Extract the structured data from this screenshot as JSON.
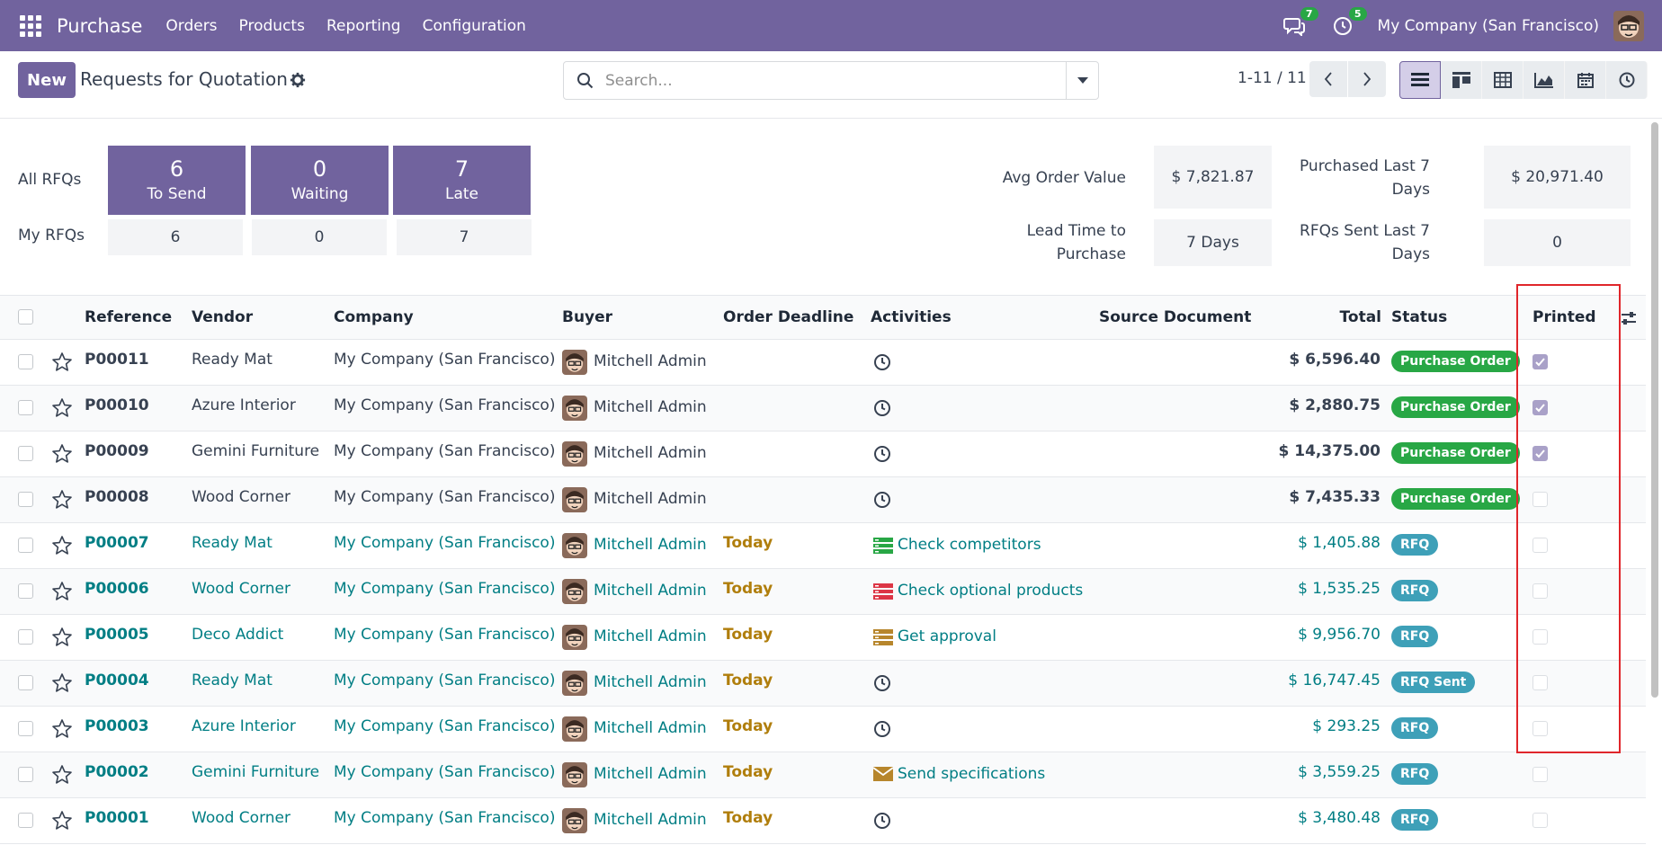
{
  "navbar": {
    "brand": "Purchase",
    "menus": [
      "Orders",
      "Products",
      "Reporting",
      "Configuration"
    ],
    "messages_count": "7",
    "activities_count": "5",
    "company": "My Company (San Francisco)"
  },
  "control_panel": {
    "new_label": "New",
    "title": "Requests for Quotation",
    "search_placeholder": "Search...",
    "pager": "1-11 / 11",
    "views": [
      "list-view-icon",
      "kanban-view-icon",
      "pivot-view-icon",
      "graph-view-icon",
      "calendar-view-icon",
      "activity-view-icon"
    ]
  },
  "dashboard": {
    "all_rfqs_label": "All RFQs",
    "my_rfqs_label": "My RFQs",
    "tiles": [
      {
        "value": "6",
        "label": "To Send",
        "mine": "6"
      },
      {
        "value": "0",
        "label": "Waiting",
        "mine": "0"
      },
      {
        "value": "7",
        "label": "Late",
        "mine": "7"
      }
    ],
    "kpis": {
      "avg_order_label": "Avg Order Value",
      "avg_order_value": "$ 7,821.87",
      "purchased_label_1": "Purchased Last 7",
      "purchased_label_2": "Days",
      "purchased_value": "$ 20,971.40",
      "lead_label_1": "Lead Time to",
      "lead_label_2": "Purchase",
      "lead_value": "7 Days",
      "sent_label_1": "RFQs Sent Last 7",
      "sent_label_2": "Days",
      "sent_value": "0"
    }
  },
  "table": {
    "headers": [
      "Reference",
      "Vendor",
      "Company",
      "Buyer",
      "Order Deadline",
      "Activities",
      "Source Document",
      "Total",
      "Status",
      "Printed"
    ],
    "rows": [
      {
        "ref": "P00011",
        "vendor": "Ready Mat",
        "company": "My Company (San Francisco)",
        "buyer": "Mitchell Admin",
        "deadline": "",
        "activity": "",
        "activity_icon": "clock-icon",
        "total": "$ 6,596.40",
        "status": "Purchase Order",
        "printed": true
      },
      {
        "ref": "P00010",
        "vendor": "Azure Interior",
        "company": "My Company (San Francisco)",
        "buyer": "Mitchell Admin",
        "deadline": "",
        "activity": "",
        "activity_icon": "clock-icon",
        "total": "$ 2,880.75",
        "status": "Purchase Order",
        "printed": true
      },
      {
        "ref": "P00009",
        "vendor": "Gemini Furniture",
        "company": "My Company (San Francisco)",
        "buyer": "Mitchell Admin",
        "deadline": "",
        "activity": "",
        "activity_icon": "clock-icon",
        "total": "$ 14,375.00",
        "status": "Purchase Order",
        "printed": true
      },
      {
        "ref": "P00008",
        "vendor": "Wood Corner",
        "company": "My Company (San Francisco)",
        "buyer": "Mitchell Admin",
        "deadline": "",
        "activity": "",
        "activity_icon": "clock-icon",
        "total": "$ 7,435.33",
        "status": "Purchase Order",
        "printed": false
      },
      {
        "ref": "P00007",
        "vendor": "Ready Mat",
        "company": "My Company (San Francisco)",
        "buyer": "Mitchell Admin",
        "deadline": "Today",
        "activity": "Check competitors",
        "activity_icon": "tasks-green-icon",
        "total": "$ 1,405.88",
        "status": "RFQ",
        "printed": false
      },
      {
        "ref": "P00006",
        "vendor": "Wood Corner",
        "company": "My Company (San Francisco)",
        "buyer": "Mitchell Admin",
        "deadline": "Today",
        "activity": "Check optional products",
        "activity_icon": "tasks-red-icon",
        "total": "$ 1,535.25",
        "status": "RFQ",
        "printed": false
      },
      {
        "ref": "P00005",
        "vendor": "Deco Addict",
        "company": "My Company (San Francisco)",
        "buyer": "Mitchell Admin",
        "deadline": "Today",
        "activity": "Get approval",
        "activity_icon": "tasks-orange-icon",
        "total": "$ 9,956.70",
        "status": "RFQ",
        "printed": false
      },
      {
        "ref": "P00004",
        "vendor": "Ready Mat",
        "company": "My Company (San Francisco)",
        "buyer": "Mitchell Admin",
        "deadline": "Today",
        "activity": "",
        "activity_icon": "clock-icon",
        "total": "$ 16,747.45",
        "status": "RFQ Sent",
        "printed": false
      },
      {
        "ref": "P00003",
        "vendor": "Azure Interior",
        "company": "My Company (San Francisco)",
        "buyer": "Mitchell Admin",
        "deadline": "Today",
        "activity": "",
        "activity_icon": "clock-icon",
        "total": "$ 293.25",
        "status": "RFQ",
        "printed": false
      },
      {
        "ref": "P00002",
        "vendor": "Gemini Furniture",
        "company": "My Company (San Francisco)",
        "buyer": "Mitchell Admin",
        "deadline": "Today",
        "activity": "Send specifications",
        "activity_icon": "envelope-icon",
        "total": "$ 3,559.25",
        "status": "RFQ",
        "printed": false
      },
      {
        "ref": "P00001",
        "vendor": "Wood Corner",
        "company": "My Company (San Francisco)",
        "buyer": "Mitchell Admin",
        "deadline": "Today",
        "activity": "",
        "activity_icon": "clock-icon",
        "total": "$ 3,480.48",
        "status": "RFQ",
        "printed": false
      }
    ]
  },
  "colors": {
    "brand": "#71639e",
    "link": "#017e84",
    "purchase_order": "#28a745",
    "rfq": "#3ea0b8",
    "deadline_today": "#b07e0c",
    "highlight": "#e0262b"
  }
}
